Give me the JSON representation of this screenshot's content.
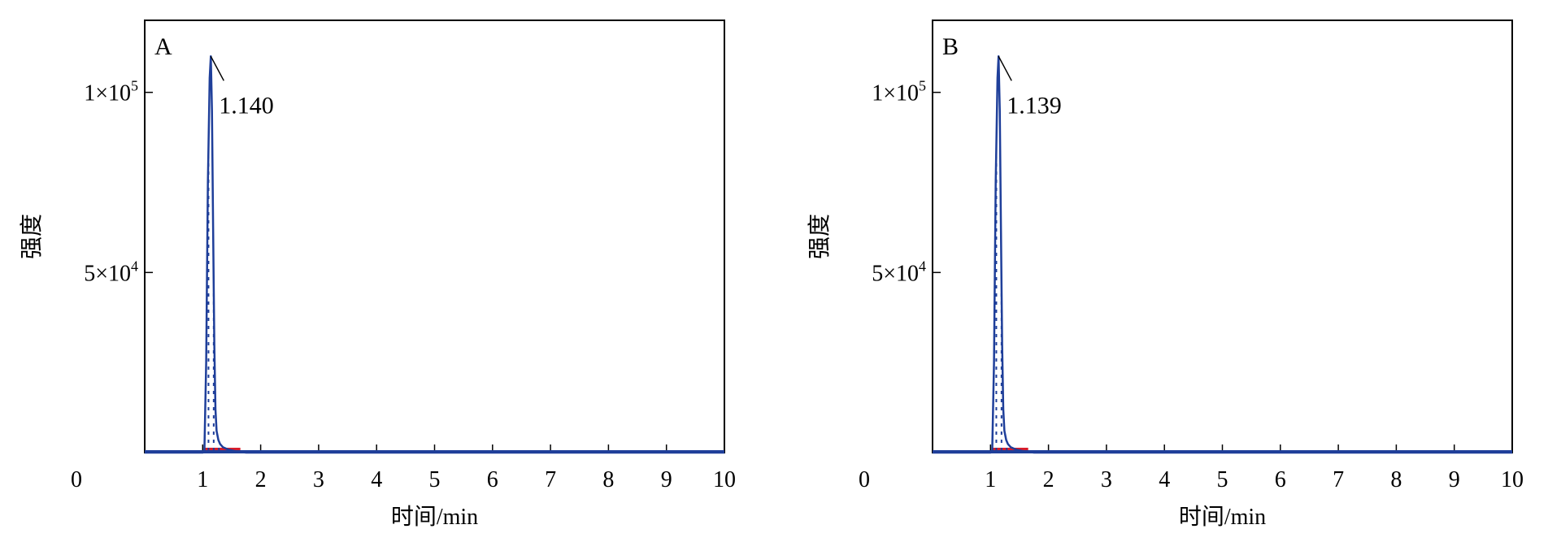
{
  "colors": {
    "trace": "#1f3f9a",
    "baseline_fill": "#d81e2c",
    "frame": "#000000"
  },
  "chart_data": [
    {
      "type": "line",
      "panel": "A",
      "xlabel": "时间/min",
      "ylabel": "强度",
      "xlim": [
        0,
        10
      ],
      "ylim": [
        0,
        120000
      ],
      "x_ticks": [
        "0",
        "1",
        "2",
        "3",
        "4",
        "5",
        "6",
        "7",
        "8",
        "9",
        "10"
      ],
      "y_ticks": [
        {
          "value": 50000,
          "base": "5×10",
          "exp": "4"
        },
        {
          "value": 100000,
          "base": "1×10",
          "exp": "5"
        }
      ],
      "peak": {
        "retention_time": 1.14,
        "label": "1.140",
        "height": 110000,
        "start": 1.03,
        "end": 1.65
      },
      "series": [
        {
          "x": [
            0,
            1.0,
            1.03,
            1.06,
            1.09,
            1.12,
            1.14,
            1.16,
            1.18,
            1.2,
            1.22,
            1.24,
            1.27,
            1.3,
            1.35,
            1.45,
            1.6,
            1.75,
            2.0,
            10
          ],
          "y": [
            0,
            0,
            400,
            25000,
            75000,
            104000,
            110000,
            95000,
            63000,
            30000,
            12000,
            6000,
            3500,
            2400,
            1500,
            800,
            300,
            0,
            0,
            0
          ]
        }
      ]
    },
    {
      "type": "line",
      "panel": "B",
      "xlabel": "时间/min",
      "ylabel": "强度",
      "xlim": [
        0,
        10
      ],
      "ylim": [
        0,
        120000
      ],
      "x_ticks": [
        "0",
        "1",
        "2",
        "3",
        "4",
        "5",
        "6",
        "7",
        "8",
        "9",
        "10"
      ],
      "y_ticks": [
        {
          "value": 50000,
          "base": "5×10",
          "exp": "4"
        },
        {
          "value": 100000,
          "base": "1×10",
          "exp": "5"
        }
      ],
      "peak": {
        "retention_time": 1.139,
        "label": "1.139",
        "height": 110000,
        "start": 1.03,
        "end": 1.65
      },
      "series": [
        {
          "x": [
            0,
            1.0,
            1.03,
            1.06,
            1.09,
            1.12,
            1.139,
            1.16,
            1.18,
            1.2,
            1.22,
            1.24,
            1.27,
            1.3,
            1.35,
            1.45,
            1.6,
            1.75,
            2.0,
            10
          ],
          "y": [
            0,
            0,
            400,
            25000,
            75000,
            104000,
            110000,
            95000,
            63000,
            30000,
            12000,
            6000,
            3500,
            2400,
            1500,
            800,
            300,
            0,
            0,
            0
          ]
        }
      ]
    }
  ]
}
